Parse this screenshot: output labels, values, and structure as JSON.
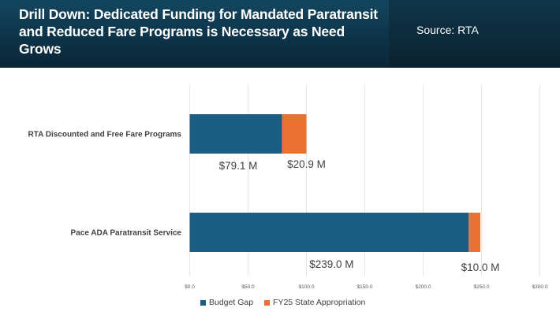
{
  "header": {
    "title": "Drill Down: Dedicated Funding for Mandated Paratransit and Reduced Fare Programs is Necessary as Need Grows",
    "source": "Source: RTA"
  },
  "chart_data": {
    "type": "bar",
    "orientation": "horizontal",
    "stacked": true,
    "title": "",
    "xlabel": "",
    "ylabel": "",
    "categories": [
      "RTA Discounted and Free Fare Programs",
      "Pace ADA Paratransit Service"
    ],
    "series": [
      {
        "name": "Budget Gap",
        "color": "#1a5f83",
        "values": [
          79.1,
          239.0
        ],
        "labels": [
          "$79.1 M",
          "$239.0 M"
        ]
      },
      {
        "name": "FY25 State Appropriation",
        "color": "#e97132",
        "values": [
          20.9,
          10.0
        ],
        "labels": [
          "$20.9 M",
          "$10.0 M"
        ]
      }
    ],
    "xlim": [
      0,
      300
    ],
    "xticks": [
      0,
      50,
      100,
      150,
      200,
      250,
      300
    ],
    "xtick_labels": [
      "$0.0",
      "$50.0",
      "$100.0",
      "$150.0",
      "$200.0",
      "$250.0",
      "$300.0"
    ],
    "grid": true,
    "legend_position": "bottom-left"
  }
}
